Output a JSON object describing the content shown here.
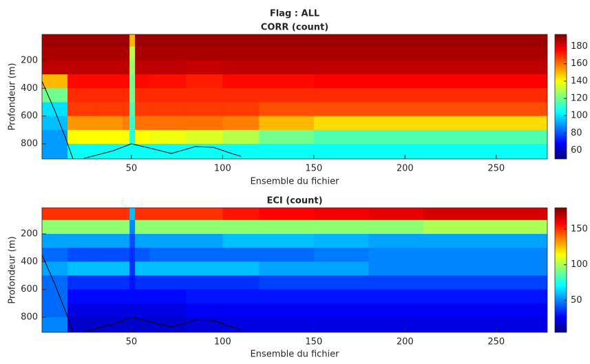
{
  "figure_title": "Flag : ALL",
  "chart_data": [
    {
      "type": "heatmap",
      "title": "CORR (count)",
      "xlabel": "Ensemble du fichier",
      "ylabel": "Profondeur (m)",
      "colormap": "jet",
      "y_reversed": true,
      "xlim": [
        1,
        278
      ],
      "ylim": [
        12,
        909
      ],
      "xticks": [
        50,
        100,
        150,
        200,
        250
      ],
      "yticks": [
        200,
        400,
        600,
        800
      ],
      "clim": [
        50,
        194
      ],
      "cticks": [
        60,
        80,
        100,
        120,
        140,
        160,
        180
      ],
      "xbins": [
        1,
        15,
        30,
        45,
        49,
        52,
        60,
        80,
        100,
        120,
        150,
        180,
        210,
        240,
        278
      ],
      "ybins": [
        12,
        100,
        200,
        300,
        400,
        500,
        600,
        700,
        800,
        909
      ],
      "z": [
        [
          190,
          190,
          190,
          190,
          150,
          190,
          190,
          190,
          190,
          190,
          190,
          190,
          190,
          190
        ],
        [
          188,
          188,
          188,
          188,
          130,
          188,
          188,
          188,
          188,
          188,
          188,
          188,
          188,
          188
        ],
        [
          185,
          185,
          185,
          185,
          125,
          185,
          185,
          184,
          185,
          185,
          185,
          185,
          185,
          185
        ],
        [
          150,
          175,
          175,
          175,
          120,
          175,
          174,
          172,
          175,
          175,
          176,
          176,
          176,
          176
        ],
        [
          120,
          170,
          170,
          170,
          120,
          170,
          170,
          170,
          170,
          170,
          170,
          170,
          170,
          170
        ],
        [
          100,
          168,
          168,
          168,
          115,
          168,
          168,
          168,
          168,
          165,
          165,
          165,
          165,
          165
        ],
        [
          95,
          155,
          155,
          158,
          110,
          160,
          160,
          160,
          158,
          150,
          145,
          145,
          145,
          145
        ],
        [
          90,
          140,
          140,
          140,
          108,
          140,
          138,
          135,
          130,
          120,
          115,
          115,
          115,
          115
        ],
        [
          90,
          105,
          105,
          105,
          105,
          105,
          105,
          105,
          105,
          105,
          105,
          105,
          105,
          105
        ]
      ],
      "track": {
        "color": "#000000",
        "x": [
          1,
          8,
          14,
          18,
          null,
          24,
          40,
          50,
          60,
          72,
          85,
          95,
          105,
          110
        ],
        "y": [
          350,
          560,
          760,
          909,
          null,
          905,
          850,
          800,
          830,
          870,
          820,
          825,
          870,
          890
        ]
      }
    },
    {
      "type": "heatmap",
      "title": "ECI (count)",
      "xlabel": "Ensemble du fichier",
      "ylabel": "Profondeur (m)",
      "colormap": "jet",
      "y_reversed": true,
      "xlim": [
        1,
        278
      ],
      "ylim": [
        12,
        909
      ],
      "xticks": [
        50,
        100,
        150,
        200,
        250
      ],
      "yticks": [
        200,
        400,
        600,
        800
      ],
      "clim": [
        5,
        180
      ],
      "cticks": [
        50,
        100,
        150
      ],
      "xbins": [
        1,
        15,
        30,
        45,
        49,
        52,
        60,
        80,
        100,
        120,
        150,
        180,
        210,
        240,
        278
      ],
      "ybins": [
        12,
        100,
        200,
        300,
        400,
        500,
        600,
        700,
        800,
        909
      ],
      "z": [
        [
          150,
          150,
          150,
          150,
          60,
          150,
          150,
          150,
          155,
          158,
          160,
          162,
          165,
          165
        ],
        [
          95,
          95,
          95,
          95,
          50,
          95,
          95,
          95,
          95,
          95,
          95,
          95,
          100,
          100
        ],
        [
          55,
          55,
          55,
          55,
          40,
          55,
          55,
          55,
          60,
          60,
          58,
          55,
          55,
          55
        ],
        [
          45,
          40,
          40,
          40,
          35,
          42,
          45,
          45,
          45,
          45,
          48,
          50,
          50,
          50
        ],
        [
          55,
          60,
          60,
          60,
          35,
          60,
          60,
          60,
          60,
          55,
          55,
          50,
          50,
          50
        ],
        [
          45,
          35,
          35,
          35,
          30,
          35,
          35,
          35,
          35,
          38,
          38,
          38,
          38,
          38
        ],
        [
          45,
          28,
          28,
          28,
          28,
          28,
          28,
          30,
          30,
          30,
          30,
          30,
          30,
          30
        ],
        [
          45,
          22,
          22,
          22,
          22,
          22,
          22,
          25,
          25,
          25,
          25,
          25,
          25,
          25
        ],
        [
          50,
          18,
          18,
          18,
          18,
          18,
          18,
          20,
          22,
          22,
          22,
          22,
          22,
          22
        ]
      ],
      "track": {
        "color": "#000000",
        "x": [
          1,
          8,
          14,
          18,
          null,
          24,
          40,
          50,
          60,
          72,
          85,
          95,
          105,
          110
        ],
        "y": [
          350,
          560,
          760,
          909,
          null,
          905,
          850,
          800,
          830,
          870,
          820,
          825,
          870,
          890
        ]
      }
    }
  ]
}
